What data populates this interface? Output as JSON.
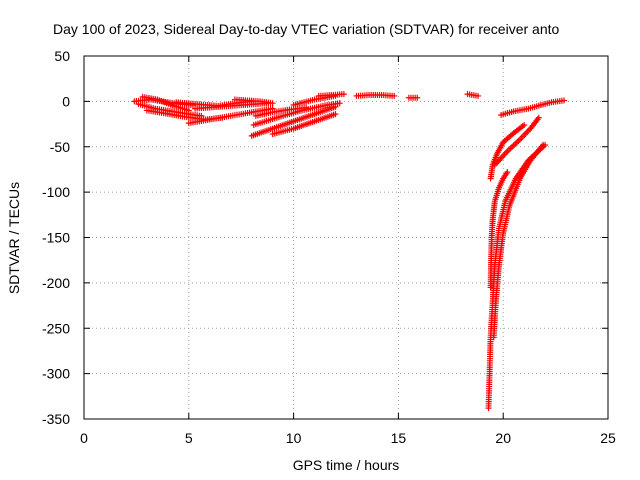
{
  "chart_data": {
    "type": "scatter",
    "title": "Day 100 of 2023, Sidereal Day-to-day VTEC variation (SDTVAR) for receiver anto",
    "xlabel": "GPS time / hours",
    "ylabel": "SDTVAR / TECUs",
    "xlim": [
      0,
      25
    ],
    "ylim": [
      -350,
      50
    ],
    "xticks": [
      0,
      5,
      10,
      15,
      20,
      25
    ],
    "yticks": [
      -350,
      -300,
      -250,
      -200,
      -150,
      -100,
      -50,
      0,
      50
    ],
    "grid": true,
    "marker": "plus",
    "color": "#ff0000",
    "series": [
      {
        "x": [
          2.4,
          3.2,
          4.0,
          4.6,
          5.2
        ],
        "y": [
          0,
          2,
          -1,
          -3,
          -4
        ]
      },
      {
        "x": [
          2.6,
          3.4,
          4.2,
          5.0,
          5.6
        ],
        "y": [
          -3,
          -8,
          -11,
          -14,
          -16
        ]
      },
      {
        "x": [
          2.8,
          3.5,
          4.3,
          5.0
        ],
        "y": [
          5,
          2,
          -5,
          -10
        ]
      },
      {
        "x": [
          3.0,
          3.8,
          4.8,
          5.8,
          6.6
        ],
        "y": [
          -10,
          -13,
          -17,
          -20,
          -18
        ]
      },
      {
        "x": [
          4.4,
          5.4,
          6.4,
          7.2,
          8.0
        ],
        "y": [
          -1,
          -3,
          -5,
          -2,
          0
        ]
      },
      {
        "x": [
          5.0,
          6.0,
          7.0,
          8.0,
          9.0
        ],
        "y": [
          -24,
          -20,
          -16,
          -12,
          -8
        ]
      },
      {
        "x": [
          5.3,
          6.4,
          7.6,
          8.8
        ],
        "y": [
          -8,
          -6,
          -4,
          -2
        ]
      },
      {
        "x": [
          7.2,
          7.8,
          8.4,
          9.0
        ],
        "y": [
          2,
          1,
          0,
          -2
        ]
      },
      {
        "x": [
          8.0,
          9.0,
          10.0,
          11.0,
          12.0
        ],
        "y": [
          -38,
          -30,
          -22,
          -14,
          -6
        ]
      },
      {
        "x": [
          8.1,
          9.2,
          10.4,
          11.6,
          12.2
        ],
        "y": [
          -26,
          -18,
          -10,
          -4,
          -2
        ]
      },
      {
        "x": [
          8.2,
          9.0,
          9.8,
          10.6
        ],
        "y": [
          -16,
          -12,
          -9,
          -7
        ]
      },
      {
        "x": [
          9.0,
          10.0,
          11.0,
          12.0
        ],
        "y": [
          -36,
          -30,
          -22,
          -14
        ]
      },
      {
        "x": [
          10.0,
          11.0,
          12.0
        ],
        "y": [
          -4,
          2,
          6
        ]
      },
      {
        "x": [
          11.2,
          11.8,
          12.4
        ],
        "y": [
          6,
          7,
          8
        ]
      },
      {
        "x": [
          13.0,
          13.6,
          14.2,
          14.8
        ],
        "y": [
          6,
          7,
          7,
          6
        ]
      },
      {
        "x": [
          15.5,
          15.9
        ],
        "y": [
          4,
          4
        ]
      },
      {
        "x": [
          18.3,
          18.8
        ],
        "y": [
          8,
          6
        ]
      },
      {
        "x": [
          19.4,
          19.5,
          19.7,
          20.0,
          20.5,
          21.0
        ],
        "y": [
          -85,
          -70,
          -58,
          -45,
          -35,
          -26
        ]
      },
      {
        "x": [
          19.6,
          20.2,
          20.8,
          21.3,
          21.7
        ],
        "y": [
          -70,
          -55,
          -42,
          -30,
          -18
        ]
      },
      {
        "x": [
          19.9,
          20.5,
          21.2,
          21.8,
          22.3,
          22.9
        ],
        "y": [
          -15,
          -11,
          -8,
          -4,
          -1,
          1
        ]
      },
      {
        "x": [
          19.4,
          19.42,
          19.45,
          19.5,
          19.6,
          19.8,
          20.0,
          20.2
        ],
        "y": [
          -205,
          -180,
          -150,
          -130,
          -110,
          -95,
          -85,
          -78
        ]
      },
      {
        "x": [
          19.3,
          19.35,
          19.4,
          19.5,
          19.6,
          19.8,
          20.1,
          20.6,
          21.2,
          22.0
        ],
        "y": [
          -338,
          -300,
          -260,
          -220,
          -180,
          -140,
          -110,
          -85,
          -65,
          -48
        ]
      },
      {
        "x": [
          19.55,
          19.65,
          19.8,
          20.0,
          20.3,
          20.8,
          21.3,
          21.9
        ],
        "y": [
          -260,
          -220,
          -180,
          -145,
          -115,
          -85,
          -65,
          -48
        ]
      }
    ]
  }
}
